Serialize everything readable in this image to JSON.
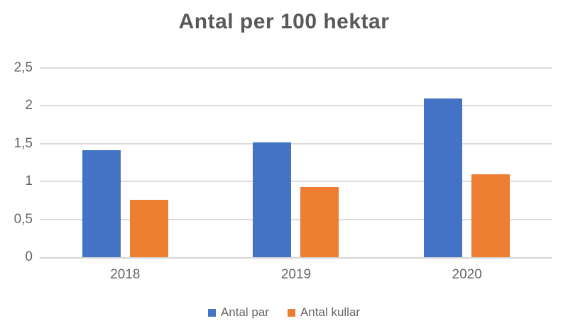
{
  "chart_data": {
    "type": "bar",
    "title": "Antal per 100 hektar",
    "categories": [
      "2018",
      "2019",
      "2020"
    ],
    "series": [
      {
        "name": "Antal par",
        "color": "#4472C4",
        "values": [
          1.41,
          1.52,
          2.1
        ]
      },
      {
        "name": "Antal kullar",
        "color": "#ED7D31",
        "values": [
          0.76,
          0.93,
          1.1
        ]
      }
    ],
    "xlabel": "",
    "ylabel": "",
    "ylim": [
      0,
      2.5
    ],
    "ytick_step": 0.5,
    "ytick_labels": [
      "0",
      "0,5",
      "1",
      "1,5",
      "2",
      "2,5"
    ],
    "decimal_separator": ",",
    "grid": true,
    "legend_position": "bottom"
  },
  "colors": {
    "title_text": "#595959",
    "axis_text": "#666666",
    "gridline": "#DCDCDC",
    "axis_line": "#D6D6D6",
    "background": "#FFFFFF"
  }
}
